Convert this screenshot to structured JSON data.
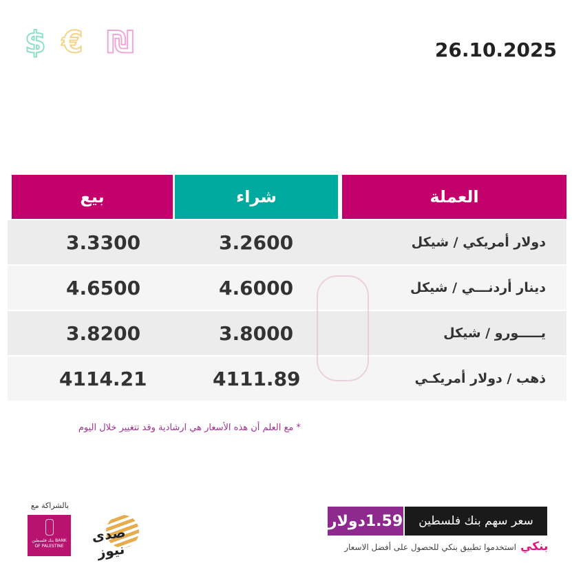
{
  "header": {
    "date": "26.10.2025",
    "symbols": [
      {
        "glyph": "$",
        "color": "#8fe0c8"
      },
      {
        "glyph": "€",
        "color": "#f3d38a"
      },
      {
        "glyph": "₪",
        "color": "#f0a6d8"
      }
    ]
  },
  "table": {
    "columns": {
      "sell": "بيع",
      "buy": "شراء",
      "currency": "العملة"
    },
    "colors": {
      "pink": "#c3006b",
      "teal": "#00a99d"
    },
    "rows": [
      {
        "currency": "دولار أمريكي / شيكل",
        "buy": "3.2600",
        "sell": "3.3300"
      },
      {
        "currency": "دينار أردنـــي / شيكل",
        "buy": "4.6000",
        "sell": "4.6500"
      },
      {
        "currency": "يـــــورو / شيكل",
        "buy": "3.8000",
        "sell": "3.8200"
      },
      {
        "currency": "ذهب / دولار أمريكـي",
        "buy": "4111.89",
        "sell": "4114.21"
      }
    ]
  },
  "note": "* مع العلم أن هذه الأسعار هي ارشادية وقد تتغيير خلال اليوم",
  "footer": {
    "partner_label": "بالشراكة مع",
    "bank_logo_text": "بنك فلسطين BANK OF PALESTINE",
    "news_logo_text": "صدى نيوز",
    "share_label": "سعر سهم بنك فلسطين",
    "share_value": "1.59دولار",
    "app_logo": "بنكي",
    "app_text": "استخدموا تطبيق بنكي للحصول على أفضل الاسعار"
  }
}
